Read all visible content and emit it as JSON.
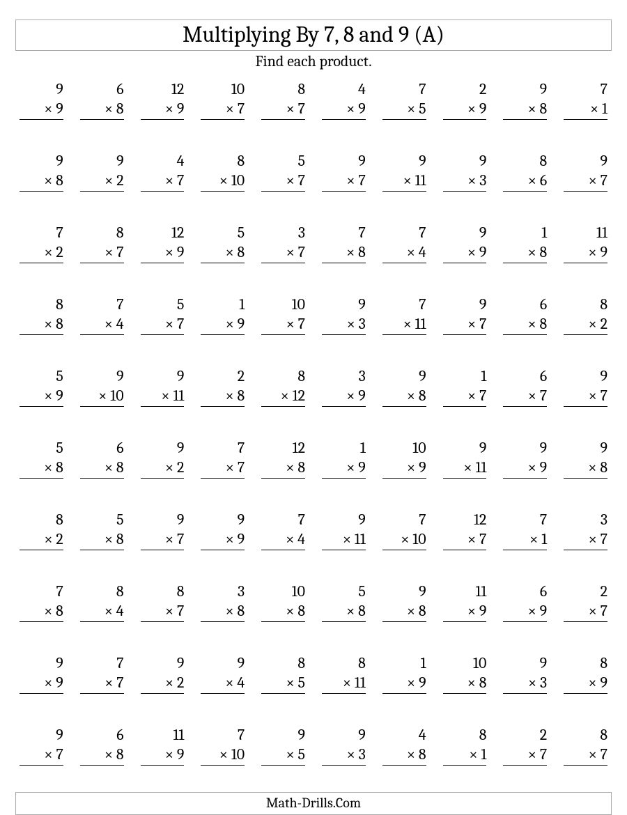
{
  "doc": {
    "title": "Multiplying By 7, 8 and 9 (A)",
    "subtitle": "Find each product.",
    "footer": "Math-Drills.Com",
    "operator": "×",
    "title_fontsize": 32,
    "subtitle_fontsize": 22,
    "problem_fontsize": 22,
    "footer_fontsize": 20,
    "text_color": "#000000",
    "background_color": "#ffffff",
    "border_color": "#aaaaaa",
    "columns": 10,
    "rows": 10
  },
  "problems": [
    [
      [
        9,
        9
      ],
      [
        6,
        8
      ],
      [
        12,
        9
      ],
      [
        10,
        7
      ],
      [
        8,
        7
      ],
      [
        4,
        9
      ],
      [
        7,
        5
      ],
      [
        2,
        9
      ],
      [
        9,
        8
      ],
      [
        7,
        1
      ]
    ],
    [
      [
        9,
        8
      ],
      [
        9,
        2
      ],
      [
        4,
        7
      ],
      [
        8,
        10
      ],
      [
        5,
        7
      ],
      [
        9,
        7
      ],
      [
        9,
        11
      ],
      [
        9,
        3
      ],
      [
        8,
        6
      ],
      [
        9,
        7
      ]
    ],
    [
      [
        7,
        2
      ],
      [
        8,
        7
      ],
      [
        12,
        9
      ],
      [
        5,
        8
      ],
      [
        3,
        7
      ],
      [
        7,
        8
      ],
      [
        7,
        4
      ],
      [
        9,
        9
      ],
      [
        1,
        8
      ],
      [
        11,
        9
      ]
    ],
    [
      [
        8,
        8
      ],
      [
        7,
        4
      ],
      [
        5,
        7
      ],
      [
        1,
        9
      ],
      [
        10,
        7
      ],
      [
        9,
        3
      ],
      [
        7,
        11
      ],
      [
        9,
        7
      ],
      [
        6,
        8
      ],
      [
        8,
        2
      ]
    ],
    [
      [
        5,
        9
      ],
      [
        9,
        10
      ],
      [
        9,
        11
      ],
      [
        2,
        8
      ],
      [
        8,
        12
      ],
      [
        3,
        9
      ],
      [
        9,
        8
      ],
      [
        1,
        7
      ],
      [
        6,
        7
      ],
      [
        9,
        7
      ]
    ],
    [
      [
        5,
        8
      ],
      [
        6,
        8
      ],
      [
        9,
        2
      ],
      [
        7,
        7
      ],
      [
        12,
        8
      ],
      [
        1,
        9
      ],
      [
        10,
        9
      ],
      [
        9,
        11
      ],
      [
        9,
        9
      ],
      [
        9,
        8
      ]
    ],
    [
      [
        8,
        2
      ],
      [
        5,
        8
      ],
      [
        9,
        7
      ],
      [
        9,
        9
      ],
      [
        7,
        4
      ],
      [
        9,
        11
      ],
      [
        7,
        10
      ],
      [
        12,
        7
      ],
      [
        7,
        1
      ],
      [
        3,
        7
      ]
    ],
    [
      [
        7,
        8
      ],
      [
        8,
        4
      ],
      [
        8,
        7
      ],
      [
        3,
        8
      ],
      [
        10,
        8
      ],
      [
        5,
        8
      ],
      [
        9,
        8
      ],
      [
        11,
        9
      ],
      [
        6,
        9
      ],
      [
        2,
        7
      ]
    ],
    [
      [
        9,
        9
      ],
      [
        7,
        7
      ],
      [
        9,
        2
      ],
      [
        9,
        4
      ],
      [
        8,
        5
      ],
      [
        8,
        11
      ],
      [
        1,
        9
      ],
      [
        10,
        8
      ],
      [
        9,
        3
      ],
      [
        8,
        9
      ]
    ],
    [
      [
        9,
        7
      ],
      [
        6,
        8
      ],
      [
        11,
        9
      ],
      [
        7,
        10
      ],
      [
        9,
        5
      ],
      [
        9,
        3
      ],
      [
        4,
        8
      ],
      [
        8,
        1
      ],
      [
        2,
        7
      ],
      [
        8,
        7
      ]
    ]
  ]
}
